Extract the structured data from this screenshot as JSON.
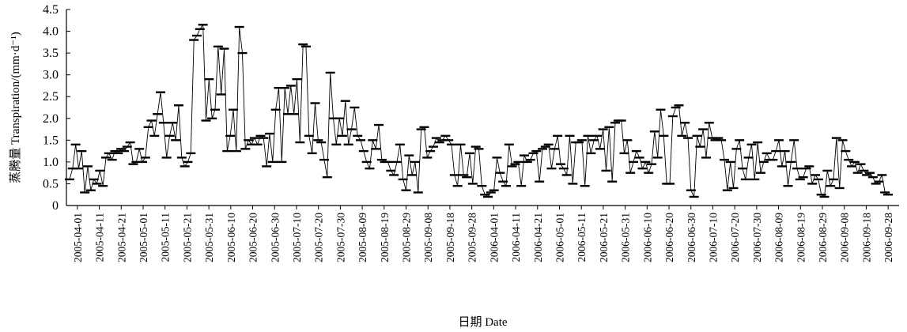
{
  "chart_data": {
    "type": "line",
    "title": "",
    "xlabel": "日期 Date",
    "ylabel": "蒸腾量 Transpiration/(mm·d⁻¹)",
    "ylim": [
      0,
      4.5
    ],
    "yticks": [
      "0",
      "0.5",
      "1.0",
      "1.5",
      "2.0",
      "2.5",
      "3.0",
      "3.5",
      "4.0",
      "4.5"
    ],
    "xticks": [
      "2005-04-01",
      "2005-04-11",
      "2005-04-21",
      "2005-05-01",
      "2005-05-11",
      "2005-05-21",
      "2005-05-31",
      "2005-06-10",
      "2005-06-20",
      "2005-06-30",
      "2005-07-10",
      "2005-07-20",
      "2005-07-30",
      "2005-08-09",
      "2005-08-19",
      "2005-08-29",
      "2005-09-08",
      "2005-09-18",
      "2005-09-28",
      "2006-04-01",
      "2006-04-11",
      "2006-04-21",
      "2006-05-01",
      "2006-05-11",
      "2006-05-21",
      "2006-05-31",
      "2006-06-10",
      "2006-06-20",
      "2006-06-30",
      "2006-07-10",
      "2006-07-20",
      "2006-07-30",
      "2006-08-09",
      "2006-08-19",
      "2006-08-29",
      "2006-09-08",
      "2006-09-18",
      "2006-09-28"
    ],
    "grid": false,
    "legend": "none",
    "marker": "horizontal-dash",
    "series": [
      {
        "values": [
          0.6,
          0.85,
          1.4,
          0.85,
          1.25,
          0.3,
          0.9,
          0.35,
          0.6,
          0.5,
          0.8,
          0.45,
          1.1,
          1.2,
          1.05,
          1.25,
          1.2,
          1.3,
          1.25,
          1.35,
          1.45,
          0.95,
          1.0,
          1.3,
          1.0,
          1.1,
          1.8,
          1.95,
          1.6,
          2.1,
          2.6,
          1.9,
          1.1,
          1.6,
          1.9,
          1.5,
          2.3,
          1.1,
          0.9,
          1.0,
          1.2,
          3.8,
          3.9,
          4.05,
          4.15,
          1.95,
          2.9,
          2.0,
          2.2,
          3.65,
          2.55,
          3.6,
          1.25,
          1.6,
          2.2,
          1.25,
          4.1,
          3.5,
          1.3,
          1.5,
          1.4,
          1.55,
          1.4,
          1.6,
          1.55,
          0.9,
          1.65,
          1.0,
          2.2,
          2.7,
          1.0,
          2.7,
          2.1,
          2.75,
          2.1,
          2.9,
          1.45,
          3.7,
          3.65,
          1.6,
          1.2,
          2.35,
          1.5,
          1.45,
          1.05,
          0.65,
          3.05,
          2.0,
          1.4,
          2.0,
          1.6,
          2.4,
          1.4,
          1.75,
          2.25,
          1.6,
          1.5,
          1.25,
          1.0,
          0.85,
          1.5,
          1.3,
          1.85,
          1.05,
          1.0,
          1.0,
          0.8,
          0.7,
          1.0,
          1.4,
          0.6,
          0.35,
          1.15,
          0.7,
          1.0,
          0.3,
          1.75,
          1.8,
          1.1,
          1.25,
          1.35,
          1.55,
          1.45,
          1.5,
          1.6,
          1.5,
          1.4,
          0.7,
          0.45,
          1.4,
          0.7,
          0.65,
          1.2,
          0.5,
          1.35,
          1.3,
          0.45,
          0.25,
          0.2,
          0.3,
          0.35,
          1.1,
          0.75,
          0.55,
          0.45,
          1.4,
          0.9,
          0.95,
          1.0,
          0.45,
          1.15,
          1.0,
          1.05,
          1.2,
          1.25,
          0.55,
          1.3,
          1.35,
          1.4,
          0.85,
          1.3,
          1.6,
          0.95,
          0.85,
          0.7,
          1.6,
          0.5,
          1.45,
          1.45,
          1.5,
          0.45,
          1.6,
          1.2,
          1.5,
          1.6,
          1.3,
          1.75,
          0.8,
          1.8,
          0.55,
          1.9,
          1.95,
          1.95,
          1.2,
          1.5,
          0.75,
          1.0,
          1.25,
          1.1,
          0.85,
          1.0,
          0.75,
          0.95,
          1.7,
          1.1,
          2.2,
          1.6,
          0.5,
          0.5,
          2.05,
          2.25,
          2.3,
          1.6,
          1.9,
          1.55,
          0.35,
          0.2,
          1.6,
          1.35,
          1.75,
          1.1,
          1.9,
          1.55,
          1.5,
          1.55,
          1.5,
          1.05,
          0.35,
          1.0,
          0.4,
          1.3,
          1.5,
          0.85,
          0.6,
          1.1,
          1.4,
          0.6,
          1.45,
          0.75,
          1.0,
          1.2,
          1.05,
          1.05,
          1.25,
          1.5,
          0.9,
          1.25,
          0.45,
          1.0,
          1.5,
          0.85,
          0.6,
          0.65,
          0.85,
          0.9,
          0.5,
          0.7,
          0.6,
          0.25,
          0.2,
          0.8,
          0.45,
          0.6,
          1.55,
          0.4,
          1.5,
          1.25,
          1.05,
          0.9,
          1.0,
          0.75,
          0.95,
          0.8,
          0.7,
          0.75,
          0.65,
          0.5,
          0.55,
          0.7,
          0.3,
          0.25
        ]
      }
    ]
  }
}
